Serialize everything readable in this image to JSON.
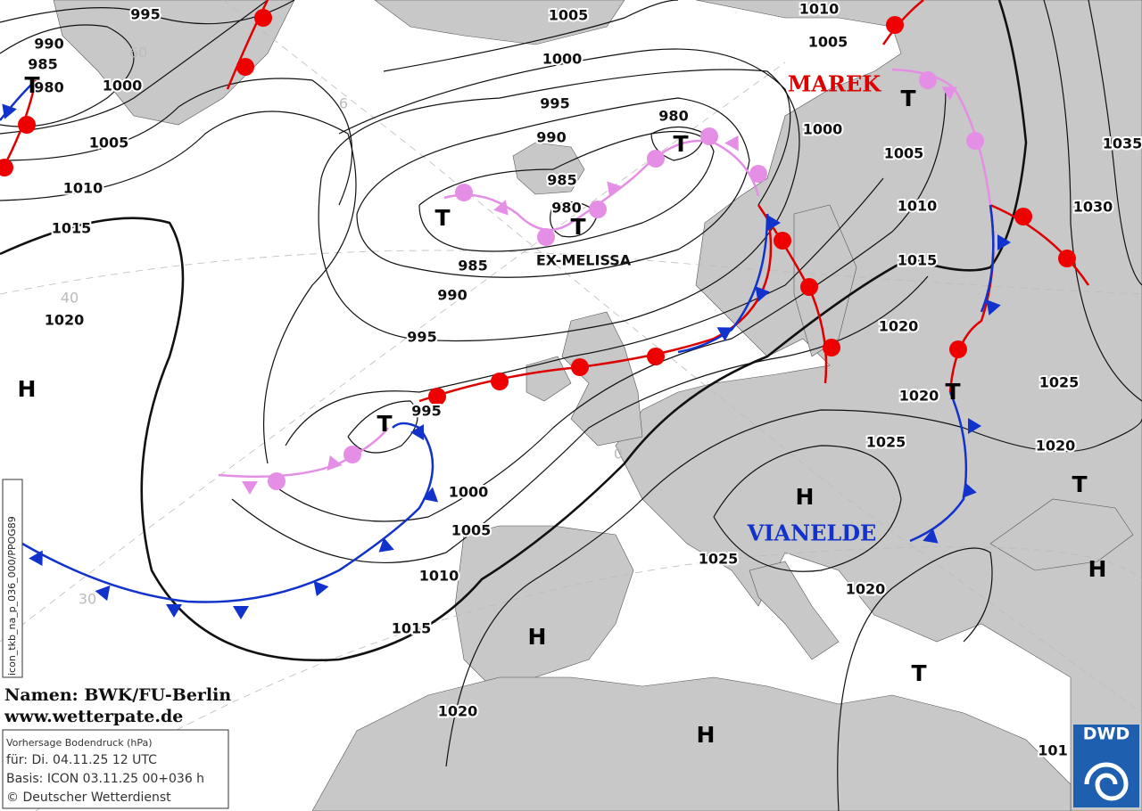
{
  "map": {
    "pressure_labels": [
      995,
      990,
      985,
      980,
      1000,
      1005,
      1010,
      1015,
      1020,
      1005,
      1000,
      995,
      990,
      985,
      980,
      980,
      985,
      990,
      995,
      995,
      1000,
      1005,
      1010,
      1015,
      1020,
      1025,
      1020,
      1025,
      1020,
      1020,
      1015,
      1010,
      1005,
      1000,
      1005,
      1010,
      1035,
      1030,
      1025,
      1020,
      101
    ],
    "centers": [
      "T",
      "T",
      "T",
      "T",
      "T",
      "T",
      "T",
      "T",
      "T",
      "H",
      "H",
      "H",
      "H",
      "H"
    ],
    "system_names": [
      "MAREK",
      "EX-MELISSA",
      "VIANELDE"
    ],
    "graticule_labels": [
      "60",
      "6",
      "40",
      "30",
      "0"
    ],
    "credits": {
      "names": "Namen: BWK/FU-Berlin",
      "url": "www.wetterpate.de"
    },
    "info_box": [
      "Vorhersage Bodendruck (hPa)",
      "für:  Di. 04.11.25  12 UTC",
      "Basis: ICON  03.11.25 00+036 h",
      "© Deutscher Wetterdienst"
    ],
    "side_label": "icon_tkb_na_p_036_000/PPOG89",
    "logo": "DWD"
  }
}
